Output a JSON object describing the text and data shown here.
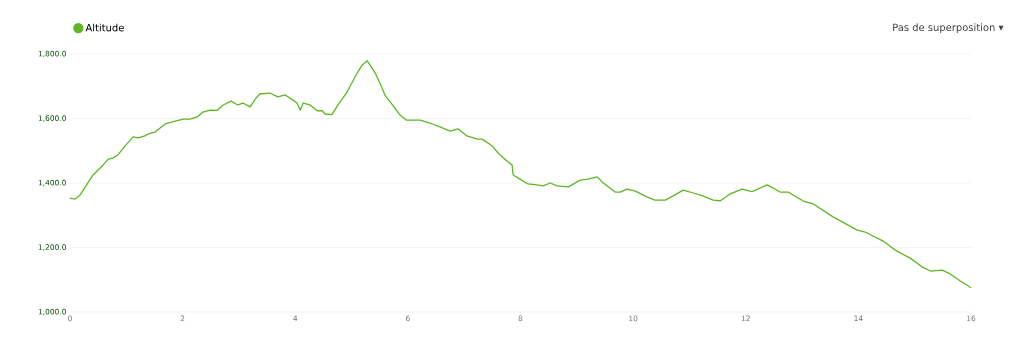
{
  "chart_data": {
    "type": "line",
    "legend": "top left",
    "grid": "y",
    "marker": "none",
    "line_style": "solid",
    "annotations": [
      "Pas de superposition ▾"
    ],
    "xlim": [
      0,
      16
    ],
    "xticks": [
      0,
      2,
      4,
      6,
      8,
      10,
      12,
      14,
      16
    ],
    "ylim": [
      1000,
      1800
    ],
    "yticks": [
      {
        "value": 1000,
        "label": "1,000.0"
      },
      {
        "value": 1200,
        "label": "1,200.0"
      },
      {
        "value": 1400,
        "label": "1,400.0"
      },
      {
        "value": 1600,
        "label": "1,600.0"
      },
      {
        "value": 1800,
        "label": "1,800.0"
      }
    ],
    "series": [
      {
        "name": "Altitude",
        "color": "#5fb523",
        "x": [
          0,
          0.09,
          0.18,
          0.41,
          0.59,
          0.68,
          0.76,
          0.85,
          0.98,
          1.12,
          1.21,
          1.33,
          1.39,
          1.51,
          1.69,
          1.87,
          2.01,
          2.13,
          2.26,
          2.36,
          2.49,
          2.61,
          2.72,
          2.86,
          2.98,
          3.07,
          3.2,
          3.29,
          3.37,
          3.55,
          3.69,
          3.82,
          3.96,
          4.03,
          4.09,
          4.14,
          4.26,
          4.39,
          4.48,
          4.53,
          4.65,
          4.76,
          4.92,
          5.1,
          5.19,
          5.28,
          5.42,
          5.51,
          5.6,
          5.74,
          5.86,
          5.97,
          6.22,
          6.39,
          6.57,
          6.75,
          6.89,
          7.05,
          7.23,
          7.32,
          7.5,
          7.6,
          7.76,
          7.85,
          7.87,
          7.99,
          8.13,
          8.29,
          8.4,
          8.53,
          8.65,
          8.85,
          9.06,
          9.2,
          9.36,
          9.47,
          9.68,
          9.77,
          9.89,
          10.04,
          10.25,
          10.39,
          10.57,
          10.71,
          10.89,
          11.07,
          11.24,
          11.42,
          11.55,
          11.72,
          11.94,
          12.11,
          12.38,
          12.61,
          12.75,
          13.02,
          13.2,
          13.55,
          13.98,
          14.12,
          14.44,
          14.65,
          14.92,
          15.13,
          15.28,
          15.49,
          15.63,
          15.81,
          16.0
        ],
        "values": [
          1353,
          1350,
          1363,
          1425,
          1456,
          1474,
          1477,
          1487,
          1515,
          1543,
          1540,
          1546,
          1552,
          1558,
          1583,
          1592,
          1598,
          1598,
          1605,
          1620,
          1626,
          1625,
          1642,
          1654,
          1642,
          1648,
          1636,
          1660,
          1676,
          1679,
          1667,
          1673,
          1657,
          1648,
          1626,
          1648,
          1642,
          1624,
          1624,
          1614,
          1612,
          1642,
          1682,
          1741,
          1766,
          1779,
          1741,
          1707,
          1670,
          1639,
          1611,
          1595,
          1595,
          1586,
          1574,
          1561,
          1568,
          1546,
          1536,
          1536,
          1515,
          1493,
          1468,
          1456,
          1425,
          1412,
          1397,
          1394,
          1391,
          1400,
          1391,
          1388,
          1409,
          1412,
          1419,
          1400,
          1372,
          1372,
          1381,
          1375,
          1356,
          1347,
          1347,
          1360,
          1378,
          1369,
          1360,
          1347,
          1345,
          1366,
          1381,
          1373,
          1394,
          1372,
          1372,
          1344,
          1335,
          1295,
          1254,
          1248,
          1220,
          1192,
          1167,
          1140,
          1127,
          1130,
          1118,
          1096,
          1075
        ]
      }
    ]
  }
}
